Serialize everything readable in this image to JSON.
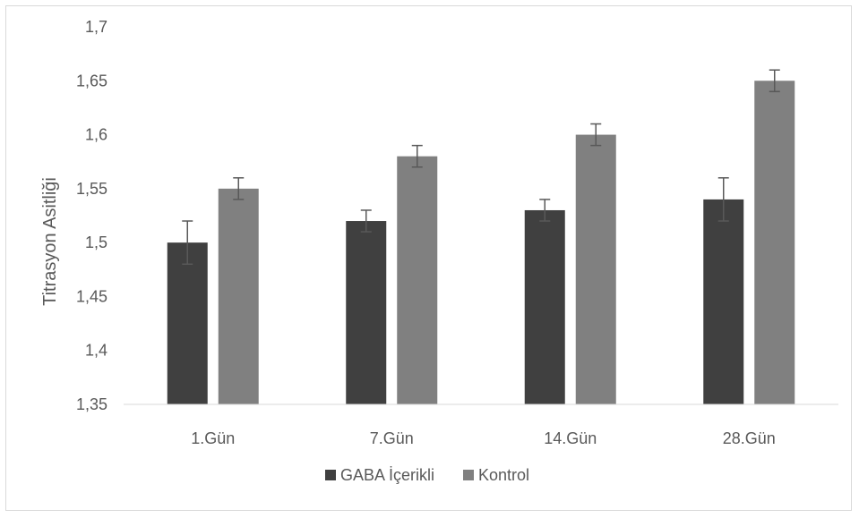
{
  "chart_data": {
    "type": "bar",
    "ylabel": "Titrasyon Asitliği",
    "xlabel": "",
    "categories": [
      "1.Gün",
      "7.Gün",
      "14.Gün",
      "28.Gün"
    ],
    "ylim": [
      1.35,
      1.7
    ],
    "y_ticks": [
      "1,35",
      "1,4",
      "1,45",
      "1,5",
      "1,55",
      "1,6",
      "1,65",
      "1,7"
    ],
    "y_tick_values": [
      1.35,
      1.4,
      1.45,
      1.5,
      1.55,
      1.6,
      1.65,
      1.7
    ],
    "grid": false,
    "legend_position": "bottom",
    "series": [
      {
        "name": "GABA İçerikli",
        "color": "#404040",
        "values": [
          1.5,
          1.52,
          1.53,
          1.54
        ],
        "errors": [
          0.02,
          0.01,
          0.01,
          0.02
        ]
      },
      {
        "name": "Kontrol",
        "color": "#808080",
        "values": [
          1.55,
          1.58,
          1.6,
          1.65
        ],
        "errors": [
          0.01,
          0.01,
          0.01,
          0.01
        ]
      }
    ]
  }
}
